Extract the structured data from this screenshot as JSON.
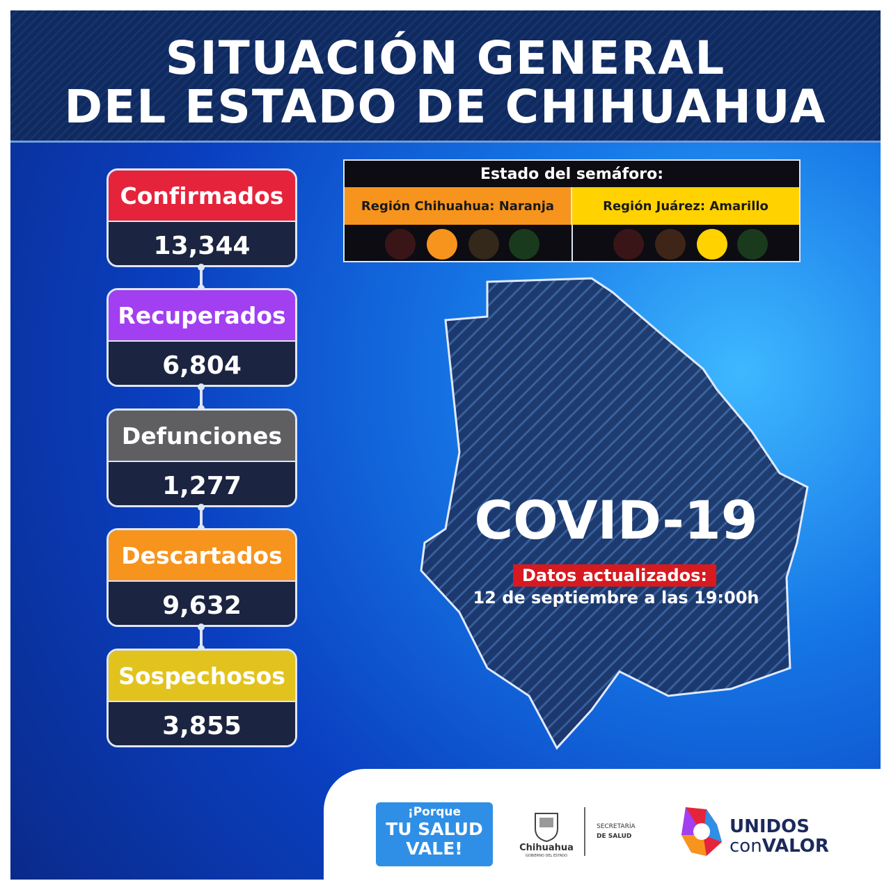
{
  "header": {
    "title_lines": [
      "SITUACIÓN GENERAL",
      "DEL ESTADO DE CHIHUAHUA"
    ]
  },
  "stats": [
    {
      "label": "Confirmados",
      "value": "13,344",
      "color": "#e5243b"
    },
    {
      "label": "Recuperados",
      "value": "6,804",
      "color": "#a23ff0"
    },
    {
      "label": "Defunciones",
      "value": "1,277",
      "color": "#5f5f62"
    },
    {
      "label": "Descartados",
      "value": "9,632",
      "color": "#f7941d"
    },
    {
      "label": "Sospechosos",
      "value": "3,855",
      "color": "#e2c31e"
    }
  ],
  "semaforo": {
    "title": "Estado del semáforo:",
    "regions": [
      {
        "label": "Región Chihuahua: Naranja",
        "color": "#f7941d"
      },
      {
        "label": "Región Juárez: Amarillo",
        "color": "#ffd200"
      }
    ]
  },
  "covid": {
    "title": "COVID-19",
    "updated_label": "Datos actualizados:",
    "updated_date": "12 de septiembre a las 19:00h"
  },
  "footer": {
    "campaign": [
      "¡Porque",
      "TU SALUD",
      "VALE!"
    ],
    "government": {
      "name": "Chihuahua",
      "subtitle": "GOBIERNO DEL ESTADO"
    },
    "secretaria": [
      "SECRETARÍA",
      "DE SALUD"
    ],
    "slogan": {
      "top": "UNIDOS",
      "bottom_a": "con",
      "bottom_b": "VALOR"
    }
  }
}
